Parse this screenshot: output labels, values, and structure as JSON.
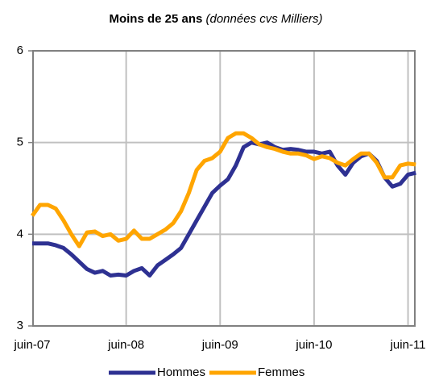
{
  "chart_data": {
    "type": "line",
    "title": "Moins de 25 ans",
    "subtitle": "(données cvs Milliers)",
    "categories": [
      "juin-07",
      null,
      null,
      null,
      null,
      null,
      null,
      null,
      null,
      null,
      null,
      null,
      "juin-08",
      null,
      null,
      null,
      null,
      null,
      null,
      null,
      null,
      null,
      null,
      null,
      "juin-09",
      null,
      null,
      null,
      null,
      null,
      null,
      null,
      null,
      null,
      null,
      null,
      "juin-10",
      null,
      null,
      null,
      null,
      null,
      null,
      null,
      null,
      null,
      null,
      null,
      "juin-11",
      null
    ],
    "series": [
      {
        "name": "Hommes",
        "color": "#2e3192",
        "values": [
          3.9,
          3.9,
          3.9,
          3.88,
          3.85,
          3.78,
          3.7,
          3.62,
          3.58,
          3.6,
          3.55,
          3.56,
          3.55,
          3.6,
          3.63,
          3.55,
          3.66,
          3.72,
          3.78,
          3.85,
          4.0,
          4.15,
          4.3,
          4.45,
          4.53,
          4.6,
          4.75,
          4.95,
          5.0,
          4.98,
          5.0,
          4.95,
          4.92,
          4.93,
          4.92,
          4.9,
          4.9,
          4.88,
          4.9,
          4.75,
          4.65,
          4.78,
          4.85,
          4.88,
          4.8,
          4.62,
          4.52,
          4.55,
          4.65,
          4.67
        ]
      },
      {
        "name": "Femmes",
        "color": "#ffa500",
        "values": [
          4.2,
          4.32,
          4.32,
          4.28,
          4.15,
          4.0,
          3.87,
          4.02,
          4.03,
          3.98,
          4.0,
          3.93,
          3.95,
          4.04,
          3.95,
          3.95,
          4.0,
          4.05,
          4.12,
          4.25,
          4.45,
          4.7,
          4.8,
          4.83,
          4.9,
          5.05,
          5.1,
          5.1,
          5.05,
          4.98,
          4.95,
          4.93,
          4.9,
          4.88,
          4.88,
          4.86,
          4.82,
          4.85,
          4.83,
          4.78,
          4.75,
          4.82,
          4.88,
          4.88,
          4.78,
          4.62,
          4.62,
          4.75,
          4.77,
          4.76
        ]
      }
    ],
    "ylim": [
      3,
      6
    ],
    "yticks": [
      3,
      4,
      5,
      6
    ],
    "grid": true
  }
}
